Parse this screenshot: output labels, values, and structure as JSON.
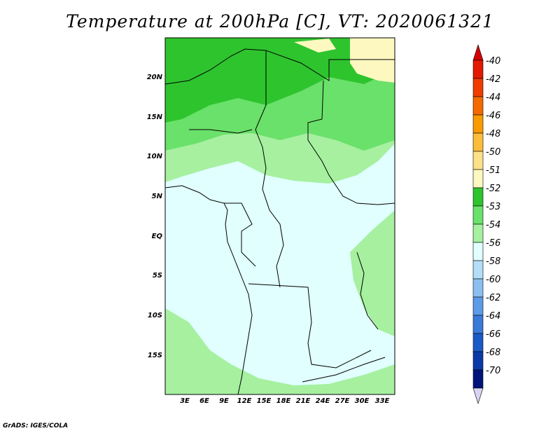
{
  "title": "Temperature at 200hPa [C], VT: 2020061321",
  "credit": "GrADS: IGES/COLA",
  "map": {
    "lat_labels": [
      "20N",
      "15N",
      "10N",
      "5N",
      "EQ",
      "5S",
      "10S",
      "15S"
    ],
    "lon_labels": [
      "3E",
      "6E",
      "9E",
      "12E",
      "15E",
      "18E",
      "21E",
      "24E",
      "27E",
      "30E",
      "33E"
    ],
    "region": "Central Africa"
  },
  "colorbar": {
    "labels": [
      "-40",
      "-42",
      "-44",
      "-46",
      "-48",
      "-50",
      "-51",
      "-52",
      "-53",
      "-54",
      "-56",
      "-58",
      "-60",
      "-62",
      "-64",
      "-66",
      "-68",
      "-70"
    ],
    "colors": [
      "#e11a00",
      "#f03c00",
      "#f46a00",
      "#f99b00",
      "#fbbd3a",
      "#fde08a",
      "#fdf8c0",
      "#2ec42e",
      "#6ae16a",
      "#a6f0a0",
      "#e0fffe",
      "#b4def8",
      "#8cbff0",
      "#5c9be6",
      "#3a7ad8",
      "#1a5ac8",
      "#0a3aa8",
      "#00137a"
    ],
    "bottom_color": "#d8d4f4"
  }
}
